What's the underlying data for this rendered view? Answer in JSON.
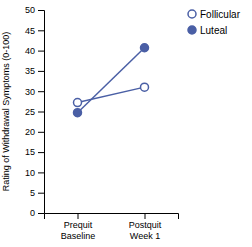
{
  "chart_data": {
    "type": "line",
    "categories": [
      "Prequit\nBaseline",
      "Postquit\nWeek 1"
    ],
    "series": [
      {
        "name": "Follicular",
        "color": "#4a5fa5",
        "marker": "circle-open",
        "values": [
          27.2,
          31.0
        ]
      },
      {
        "name": "Luteal",
        "color": "#4a5fa5",
        "marker": "circle",
        "values": [
          24.7,
          40.7
        ]
      }
    ],
    "ylabel": "Rating of Withdrawal Symptoms (0-100)",
    "ylim": [
      0,
      50
    ],
    "yticks": [
      0,
      5,
      10,
      15,
      20,
      25,
      30,
      35,
      40,
      45,
      50
    ],
    "grid": false,
    "legend": "right"
  }
}
